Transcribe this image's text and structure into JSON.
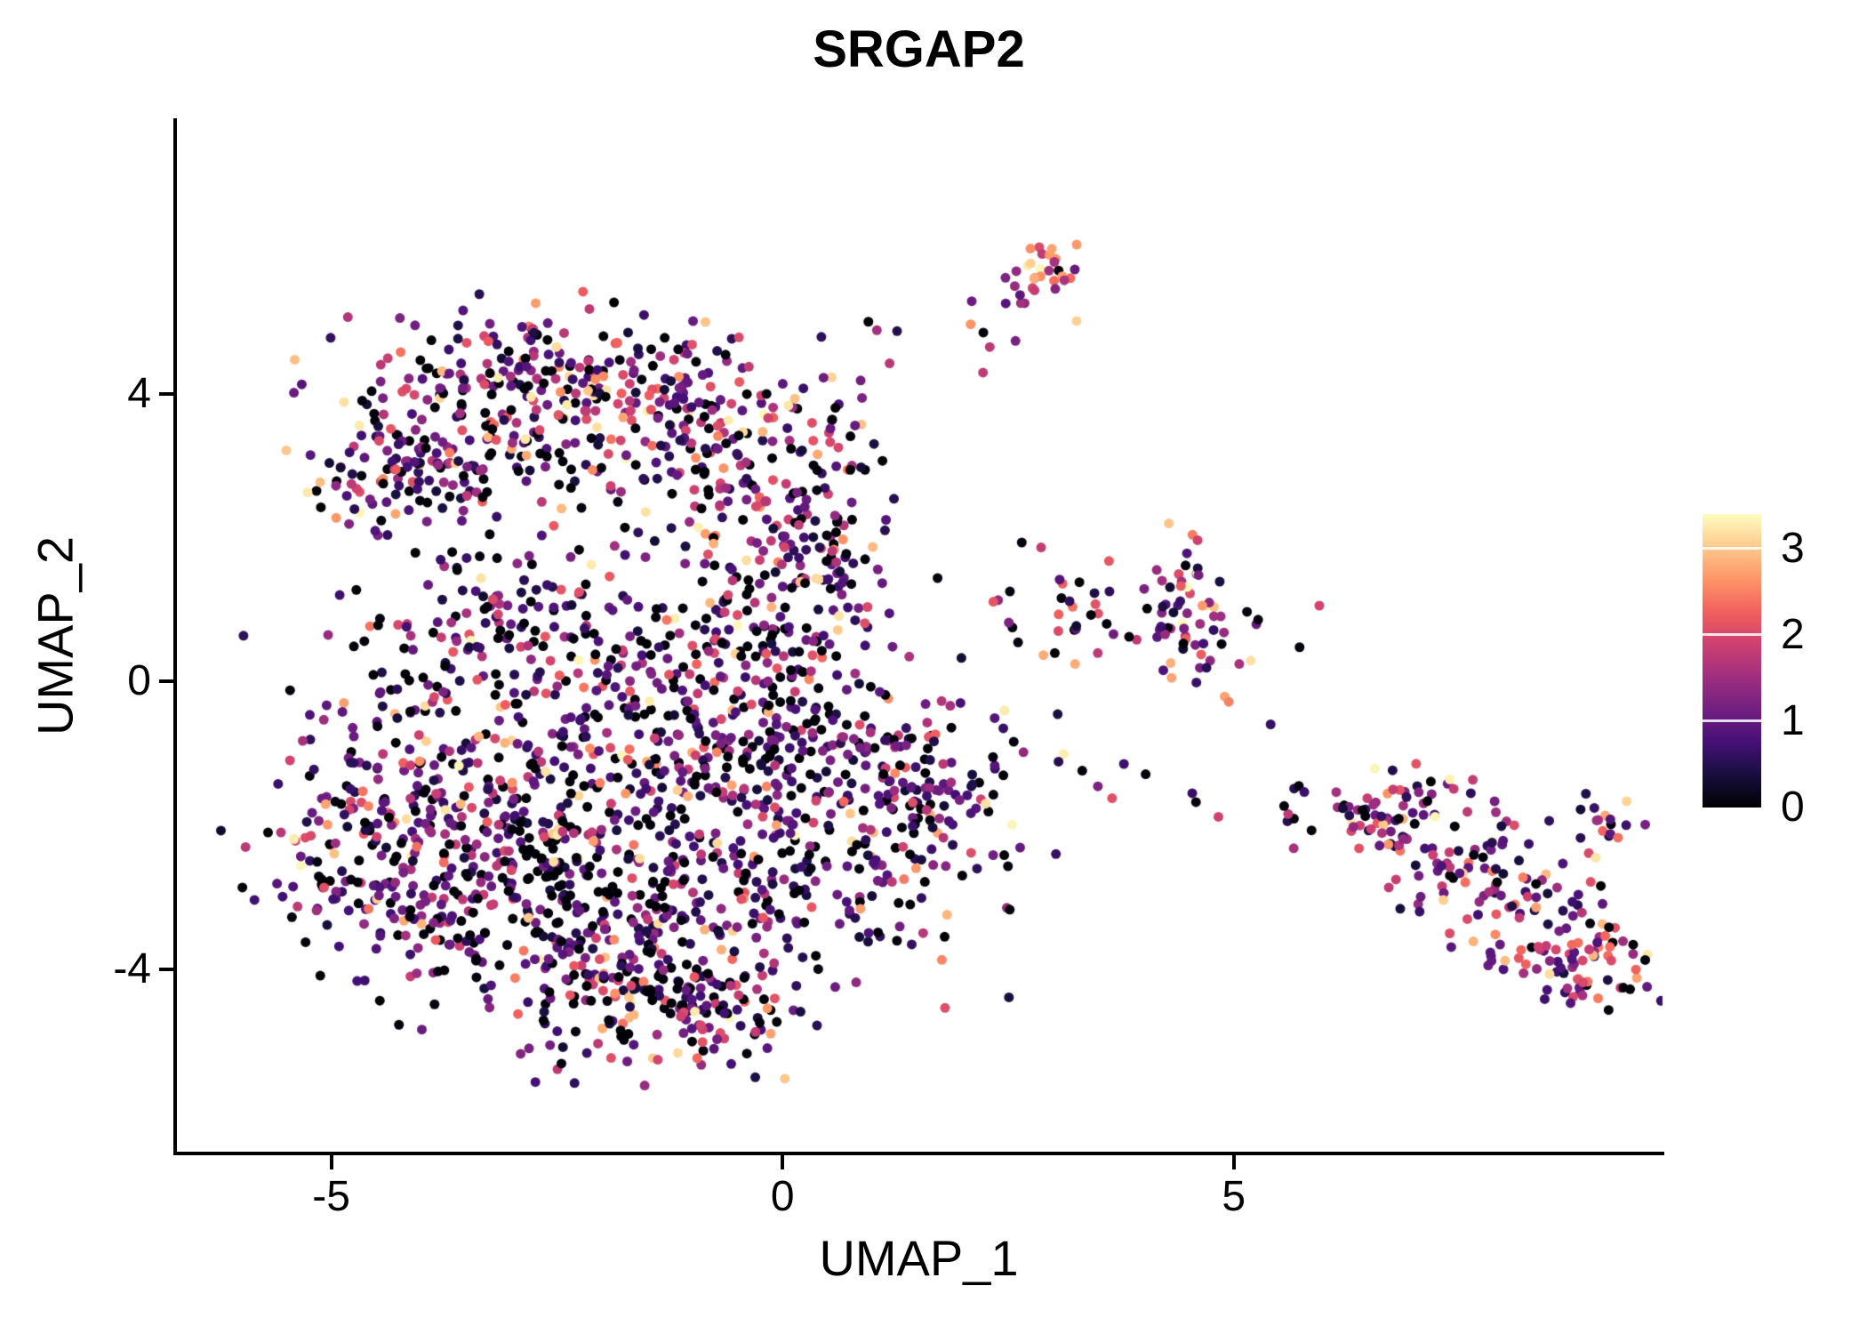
{
  "chart_data": {
    "type": "scatter",
    "title": "SRGAP2",
    "xlabel": "UMAP_1",
    "ylabel": "UMAP_2",
    "xlim": [
      -6.73,
      9.75
    ],
    "ylim": [
      -6.53,
      7.8
    ],
    "x_ticks": [
      -5,
      0,
      5
    ],
    "y_ticks": [
      -4,
      0,
      4
    ],
    "grid": false,
    "legend_position": "right",
    "point_radius_px": 5.5,
    "seed": 42,
    "colorbar": {
      "ticks": [
        0,
        1,
        2,
        3
      ],
      "vmin": 0,
      "vmax": 3.4,
      "colormap": "magma",
      "stops": [
        "#000004",
        "#180f3e",
        "#451077",
        "#721f81",
        "#9f2f7f",
        "#cd4071",
        "#f1605d",
        "#fd9567",
        "#feca8d",
        "#fcfdbf"
      ]
    },
    "value_bins": [
      [
        0.0,
        0.08
      ],
      [
        0.3,
        1.2
      ],
      [
        1.2,
        2.2
      ],
      [
        2.2,
        3.4
      ]
    ],
    "clusters": [
      {
        "name": "main-left",
        "cx": -4.3,
        "cy": -2.0,
        "sx": 0.75,
        "sy": 0.95,
        "n": 230,
        "mix": [
          0.32,
          0.4,
          0.2,
          0.08
        ]
      },
      {
        "name": "main-center",
        "cx": -3.0,
        "cy": -2.9,
        "sx": 0.95,
        "sy": 0.85,
        "n": 260,
        "mix": [
          0.3,
          0.4,
          0.22,
          0.08
        ]
      },
      {
        "name": "main-bottom",
        "cx": -1.6,
        "cy": -3.9,
        "sx": 0.85,
        "sy": 0.7,
        "n": 200,
        "mix": [
          0.3,
          0.4,
          0.22,
          0.08
        ]
      },
      {
        "name": "main-upper",
        "cx": -2.2,
        "cy": -1.0,
        "sx": 1.1,
        "sy": 0.7,
        "n": 170,
        "mix": [
          0.28,
          0.42,
          0.22,
          0.08
        ]
      },
      {
        "name": "main-right-inner",
        "cx": -0.6,
        "cy": -2.3,
        "sx": 0.8,
        "sy": 0.9,
        "n": 160,
        "mix": [
          0.3,
          0.4,
          0.22,
          0.08
        ]
      },
      {
        "name": "main-right-lobe",
        "cx": 0.9,
        "cy": -2.0,
        "sx": 0.75,
        "sy": 0.85,
        "n": 170,
        "mix": [
          0.28,
          0.4,
          0.24,
          0.08
        ]
      },
      {
        "name": "main-right-tip",
        "cx": 1.6,
        "cy": -1.4,
        "sx": 0.5,
        "sy": 0.6,
        "n": 80,
        "mix": [
          0.25,
          0.4,
          0.27,
          0.08
        ]
      },
      {
        "name": "main-bottom-tip",
        "cx": -0.9,
        "cy": -4.6,
        "sx": 0.55,
        "sy": 0.4,
        "n": 70,
        "mix": [
          0.3,
          0.4,
          0.22,
          0.08
        ]
      },
      {
        "name": "main-fill",
        "cx": -0.2,
        "cy": -0.7,
        "sx": 0.7,
        "sy": 0.6,
        "n": 90,
        "mix": [
          0.3,
          0.4,
          0.22,
          0.08
        ]
      },
      {
        "name": "bridge-left",
        "cx": -3.1,
        "cy": 0.8,
        "sx": 0.9,
        "sy": 0.65,
        "n": 140,
        "mix": [
          0.3,
          0.42,
          0.2,
          0.08
        ]
      },
      {
        "name": "bridge-mid",
        "cx": -1.3,
        "cy": 0.3,
        "sx": 0.9,
        "sy": 0.55,
        "n": 90,
        "mix": [
          0.3,
          0.4,
          0.22,
          0.08
        ]
      },
      {
        "name": "bridge-right",
        "cx": -0.3,
        "cy": 0.9,
        "sx": 0.5,
        "sy": 0.6,
        "n": 60,
        "mix": [
          0.28,
          0.4,
          0.24,
          0.08
        ]
      },
      {
        "name": "upper-top",
        "cx": -2.6,
        "cy": 4.2,
        "sx": 1.05,
        "sy": 0.5,
        "n": 220,
        "mix": [
          0.26,
          0.36,
          0.26,
          0.12
        ]
      },
      {
        "name": "upper-left",
        "cx": -3.7,
        "cy": 3.1,
        "sx": 0.7,
        "sy": 0.5,
        "n": 110,
        "mix": [
          0.26,
          0.38,
          0.24,
          0.12
        ]
      },
      {
        "name": "upper-mid",
        "cx": -1.3,
        "cy": 3.2,
        "sx": 0.8,
        "sy": 0.7,
        "n": 130,
        "mix": [
          0.26,
          0.36,
          0.26,
          0.12
        ]
      },
      {
        "name": "upper-right",
        "cx": -0.2,
        "cy": 2.6,
        "sx": 0.55,
        "sy": 0.8,
        "n": 100,
        "mix": [
          0.25,
          0.37,
          0.26,
          0.12
        ]
      },
      {
        "name": "upper-right-strip",
        "cx": 0.55,
        "cy": 1.8,
        "sx": 0.35,
        "sy": 0.75,
        "n": 80,
        "mix": [
          0.25,
          0.37,
          0.26,
          0.12
        ]
      },
      {
        "name": "upper-left-tip",
        "cx": -4.4,
        "cy": 2.8,
        "sx": 0.45,
        "sy": 0.35,
        "n": 45,
        "mix": [
          0.3,
          0.4,
          0.2,
          0.1
        ]
      },
      {
        "name": "midright-main",
        "cx": 4.5,
        "cy": 0.95,
        "sx": 0.42,
        "sy": 0.5,
        "n": 75,
        "mix": [
          0.15,
          0.3,
          0.33,
          0.22
        ]
      },
      {
        "name": "midright-left",
        "cx": 3.4,
        "cy": 1.1,
        "sx": 0.35,
        "sy": 0.35,
        "n": 18,
        "mix": [
          0.25,
          0.35,
          0.25,
          0.15
        ]
      },
      {
        "name": "midright-sparse",
        "cx": 2.4,
        "cy": 0.6,
        "sx": 0.45,
        "sy": 0.5,
        "n": 10,
        "mix": [
          0.4,
          0.3,
          0.2,
          0.1
        ]
      },
      {
        "name": "top-small",
        "cx": 2.85,
        "cy": 5.65,
        "sx": 0.17,
        "sy": 0.22,
        "n": 30,
        "mix": [
          0.05,
          0.15,
          0.45,
          0.35
        ]
      },
      {
        "name": "top-trail",
        "cx": 1.6,
        "cy": 4.85,
        "sx": 0.65,
        "sy": 0.3,
        "n": 13,
        "mix": [
          0.15,
          0.3,
          0.35,
          0.2
        ]
      },
      {
        "name": "top-trail-low",
        "cx": 0.6,
        "cy": 3.9,
        "sx": 0.3,
        "sy": 0.45,
        "n": 12,
        "mix": [
          0.2,
          0.35,
          0.3,
          0.15
        ]
      },
      {
        "name": "right-band-1",
        "cx": 6.7,
        "cy": -1.75,
        "sx": 0.45,
        "sy": 0.3,
        "n": 60,
        "mix": [
          0.12,
          0.42,
          0.3,
          0.16
        ]
      },
      {
        "name": "right-band-2",
        "cx": 7.5,
        "cy": -2.5,
        "sx": 0.5,
        "sy": 0.4,
        "n": 70,
        "mix": [
          0.12,
          0.42,
          0.3,
          0.16
        ]
      },
      {
        "name": "right-band-3",
        "cx": 8.4,
        "cy": -3.4,
        "sx": 0.5,
        "sy": 0.4,
        "n": 70,
        "mix": [
          0.1,
          0.4,
          0.32,
          0.18
        ]
      },
      {
        "name": "right-bottom-tip",
        "cx": 9.0,
        "cy": -4.0,
        "sx": 0.35,
        "sy": 0.25,
        "n": 45,
        "mix": [
          0.08,
          0.3,
          0.35,
          0.27
        ]
      },
      {
        "name": "right-top-clump",
        "cx": 9.1,
        "cy": -2.05,
        "sx": 0.25,
        "sy": 0.2,
        "n": 18,
        "mix": [
          0.1,
          0.35,
          0.35,
          0.2
        ]
      },
      {
        "name": "right-connect-1",
        "cx": 5.6,
        "cy": -1.8,
        "sx": 0.4,
        "sy": 0.12,
        "n": 8,
        "mix": [
          0.2,
          0.4,
          0.3,
          0.1
        ]
      },
      {
        "name": "right-connect-2",
        "cx": 4.1,
        "cy": -1.6,
        "sx": 0.5,
        "sy": 0.3,
        "n": 6,
        "mix": [
          0.3,
          0.4,
          0.2,
          0.1
        ]
      },
      {
        "name": "right-connect-3",
        "cx": 3.0,
        "cy": -0.9,
        "sx": 0.4,
        "sy": 0.4,
        "n": 6,
        "mix": [
          0.4,
          0.3,
          0.2,
          0.1
        ]
      }
    ]
  }
}
